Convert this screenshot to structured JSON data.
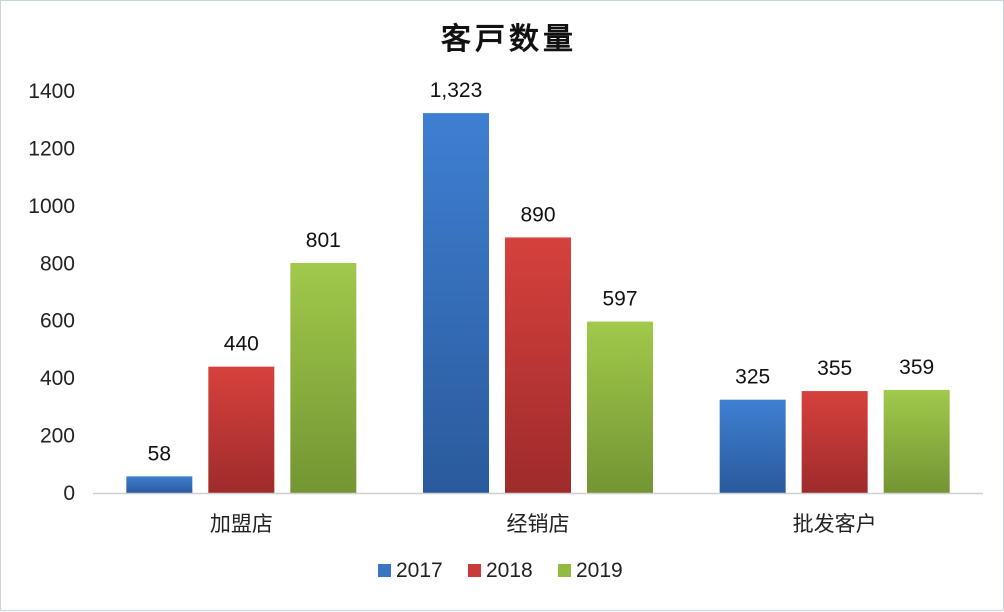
{
  "chart_data": {
    "type": "bar",
    "title": "客戸数量",
    "categories": [
      "加盟店",
      "经销店",
      "批发客户"
    ],
    "series": [
      {
        "name": "2017",
        "values": [
          58,
          1323,
          325
        ],
        "labels": [
          "58",
          "1,323",
          "325"
        ],
        "color": "#3a74c4"
      },
      {
        "name": "2018",
        "values": [
          440,
          890,
          355
        ],
        "labels": [
          "440",
          "890",
          "355"
        ],
        "color": "#c93a3a"
      },
      {
        "name": "2019",
        "values": [
          801,
          597,
          359
        ],
        "labels": [
          "801",
          "597",
          "359"
        ],
        "color": "#93bb42"
      }
    ],
    "yticks": [
      "0",
      "200",
      "400",
      "600",
      "800",
      "1000",
      "1200",
      "1400"
    ],
    "ylim": [
      0,
      1400
    ],
    "grid": false,
    "legend_position": "bottom"
  }
}
